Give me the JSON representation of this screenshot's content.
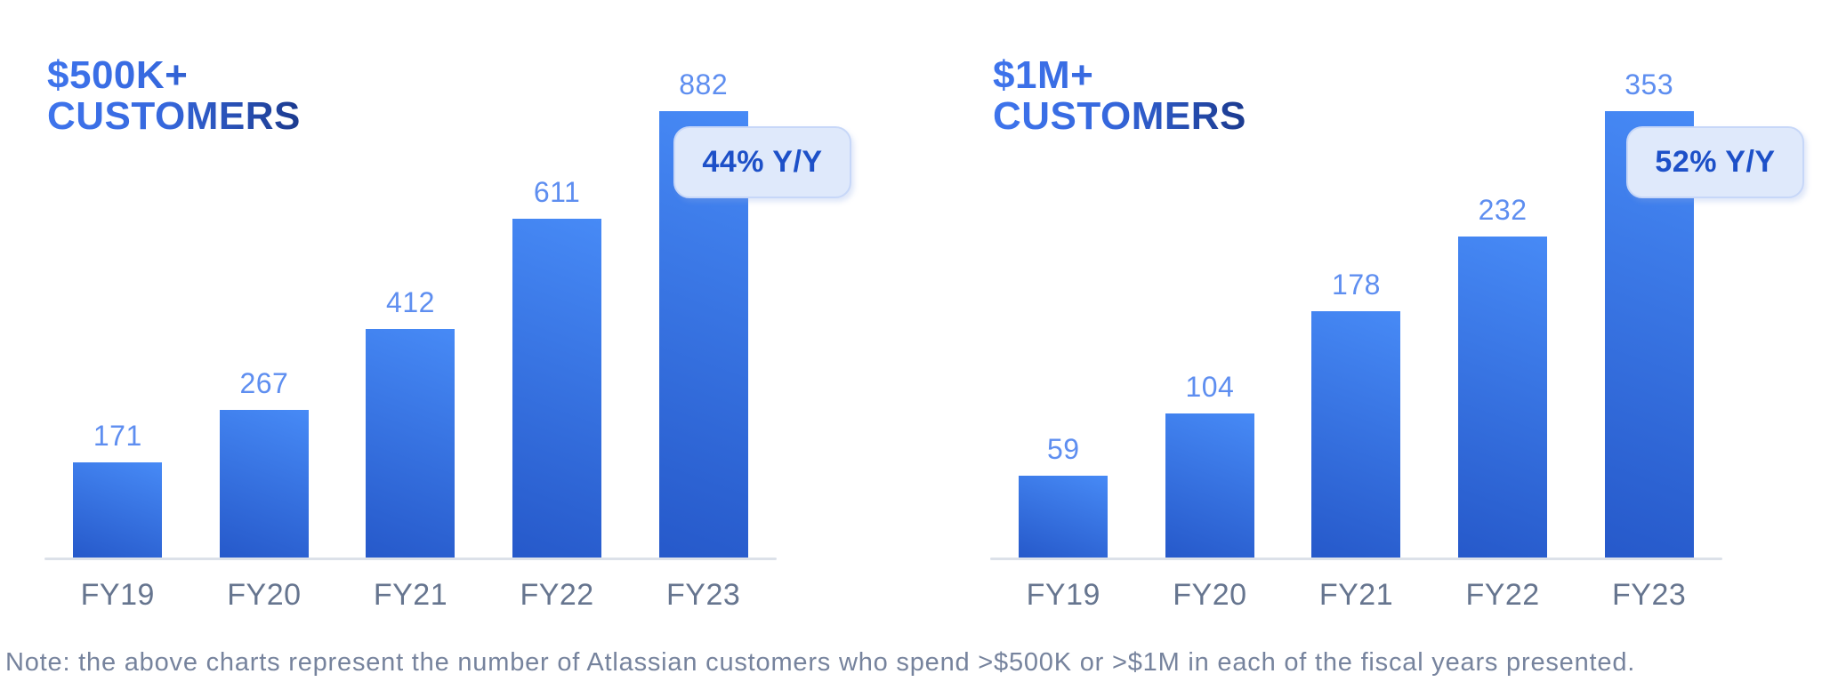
{
  "note": "Note: the above charts represent the number of Atlassian customers who spend >$500K or >$1M in each of the fiscal years presented.",
  "colors": {
    "bar_gradient_top": "#478AF6",
    "bar_gradient_bottom": "#2659CA",
    "value_label": "#5E8EF0",
    "axis_label": "#66758F",
    "axis_line": "#DCE1E9",
    "title_gradient_start": "#3E74EC",
    "title_gradient_end": "#1B3A8E",
    "badge_background": "#DFE9FB",
    "badge_border": "#C7D7F8",
    "badge_text": "#1D50C8",
    "note_text": "#76839D"
  },
  "chart_data": [
    {
      "type": "bar",
      "title": "$500K+ CUSTOMERS",
      "title_line1": "$500K+",
      "title_line2": "CUSTOMERS",
      "badge": "44% Y/Y",
      "categories": [
        "FY19",
        "FY20",
        "FY21",
        "FY22",
        "FY23"
      ],
      "values": [
        171,
        267,
        412,
        611,
        882
      ],
      "xlabel": "",
      "ylabel": "",
      "ylim": [
        0,
        882
      ],
      "grid": false,
      "legend": false,
      "value_labels": true
    },
    {
      "type": "bar",
      "title": "$1M+ CUSTOMERS",
      "title_line1": "$1M+",
      "title_line2": "CUSTOMERS",
      "badge": "52% Y/Y",
      "categories": [
        "FY19",
        "FY20",
        "FY21",
        "FY22",
        "FY23"
      ],
      "values": [
        59,
        104,
        178,
        232,
        353
      ],
      "xlabel": "",
      "ylabel": "",
      "ylim": [
        0,
        353
      ],
      "grid": false,
      "legend": false,
      "value_labels": true
    }
  ]
}
